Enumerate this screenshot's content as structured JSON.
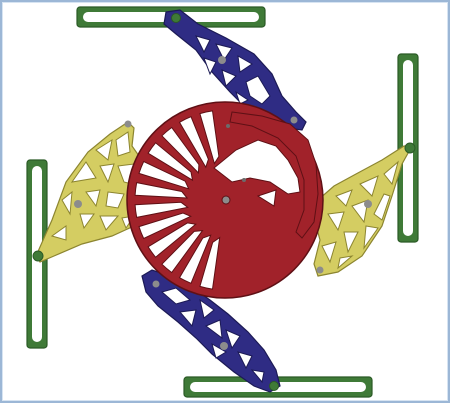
{
  "colors": {
    "frame_border": "#9cb7d6",
    "rail_fill": "#3f7a37",
    "rail_stroke": "#2b5a26",
    "crank_fill": "#2f2c84",
    "crank_stroke": "#1c1a55",
    "plate_fill": "#d4cd62",
    "plate_stroke": "#8c8530",
    "rotor_fill": "#a1222a",
    "rotor_stroke": "#5f1015",
    "hub": "#8c8c8c"
  },
  "parts": {
    "rails": 4,
    "dark_blue_cranks": 2,
    "yellow_lattice_plates": 2,
    "red_spoked_rotor": 1
  }
}
